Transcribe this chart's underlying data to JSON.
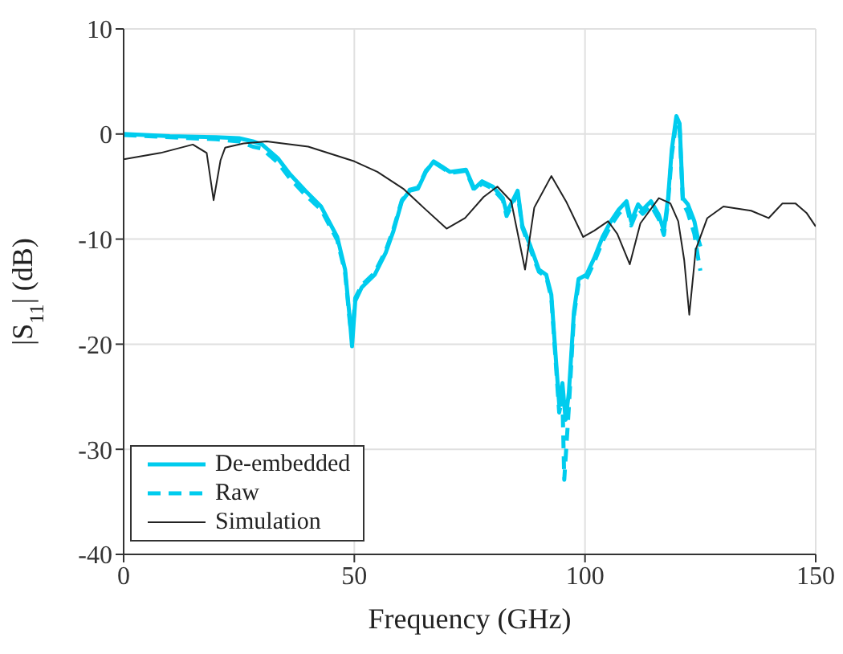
{
  "chart_data": {
    "type": "line",
    "xlabel": "Frequency (GHz)",
    "ylabel": "|S$_{11}$| (dB)",
    "xlim": [
      0,
      150
    ],
    "ylim": [
      -40,
      10
    ],
    "xticks": [
      0,
      50,
      100,
      150
    ],
    "yticks": [
      -40,
      -30,
      -20,
      -10,
      0,
      10
    ],
    "grid": true,
    "legend": "bottom left",
    "series": [
      {
        "name": "De-embedded",
        "color": "#00ccee",
        "line_style": "solid",
        "x": [
          0,
          10,
          20,
          25,
          28,
          30,
          33.4,
          36,
          39.4,
          42.8,
          46.3,
          48,
          49,
          49.5,
          50.2,
          51.6,
          54.4,
          56.8,
          58.5,
          60.3,
          62,
          63.8,
          65.5,
          67.2,
          69,
          70.7,
          74.2,
          76,
          77.7,
          80,
          82.2,
          83,
          85.4,
          86.4,
          88.2,
          90,
          91.6,
          92.7,
          93.7,
          94.4,
          95.1,
          95.8,
          96.5,
          97.6,
          98.6,
          100.3,
          102,
          103.8,
          105.6,
          107.3,
          109,
          110,
          111.5,
          112.5,
          114.3,
          116,
          117.1,
          118,
          118.8,
          119.8,
          120.5,
          121.2,
          122.3,
          123.7,
          124.4,
          125
        ],
        "values": [
          0,
          -0.2,
          -0.3,
          -0.4,
          -0.7,
          -1,
          -2.3,
          -3.8,
          -5.4,
          -6.9,
          -9.8,
          -12.9,
          -17.5,
          -20.2,
          -15.9,
          -14.6,
          -13.4,
          -11.3,
          -9.2,
          -6.4,
          -5.4,
          -5.2,
          -3.6,
          -2.6,
          -3.1,
          -3.6,
          -3.4,
          -5.2,
          -4.5,
          -5,
          -6.1,
          -7.5,
          -5.4,
          -8.7,
          -10.7,
          -12.9,
          -13.4,
          -15.3,
          -21.5,
          -25.7,
          -23.7,
          -27.2,
          -24.6,
          -16.9,
          -13.8,
          -13.4,
          -11.8,
          -9.8,
          -8.3,
          -7.2,
          -6.4,
          -8.3,
          -6.7,
          -7.2,
          -6.4,
          -7.7,
          -9.2,
          -6.1,
          -1.5,
          1.7,
          1,
          -6.1,
          -6.7,
          -8.3,
          -9.8,
          -10.7
        ]
      },
      {
        "name": "Raw",
        "color": "#00ccee",
        "line_style": "dashed",
        "x": [
          0,
          10,
          20,
          25,
          28,
          30,
          33.4,
          36,
          39.4,
          42.8,
          46.3,
          48,
          49,
          49.5,
          50.2,
          51.6,
          54.4,
          56.8,
          58.5,
          60.3,
          62,
          63.8,
          65.5,
          67.2,
          69,
          70.7,
          74.2,
          76,
          77.7,
          80,
          82.2,
          83,
          85.4,
          86.4,
          88.2,
          90,
          91.6,
          92.7,
          93.7,
          94.4,
          95.1,
          95.5,
          96.5,
          97.6,
          98.6,
          100.3,
          102,
          103.8,
          105.6,
          107.3,
          109,
          110,
          111.5,
          112.5,
          114.3,
          116,
          117.1,
          118,
          118.8,
          119.8,
          120.5,
          121.2,
          122.3,
          123.7,
          124.4,
          125
        ],
        "values": [
          -0.1,
          -0.3,
          -0.5,
          -0.7,
          -1.2,
          -1.4,
          -2.7,
          -4.2,
          -5.8,
          -7.2,
          -10.1,
          -13.2,
          -17.8,
          -19.5,
          -15.6,
          -14.4,
          -13.2,
          -11.1,
          -9,
          -6.3,
          -5.3,
          -5.1,
          -3.5,
          -2.7,
          -3.2,
          -3.7,
          -3.5,
          -5.4,
          -4.7,
          -5.2,
          -6.3,
          -7.8,
          -5.6,
          -8.9,
          -11,
          -13.1,
          -13.6,
          -15.6,
          -22,
          -26.5,
          -25,
          -32.9,
          -26,
          -17.3,
          -14.2,
          -13.8,
          -12.2,
          -10.2,
          -8.7,
          -7.6,
          -6.8,
          -8.7,
          -7.1,
          -7.6,
          -6.8,
          -8.1,
          -9.6,
          -6.5,
          -2,
          1.2,
          0.6,
          -6.5,
          -7.5,
          -9.5,
          -11.5,
          -13
        ]
      },
      {
        "name": "Simulation",
        "color": "#222222",
        "line_style": "solid",
        "x": [
          0,
          8,
          15,
          18,
          19.5,
          21,
          22,
          26,
          31,
          40,
          50,
          55,
          60.6,
          65,
          70,
          74,
          78,
          81,
          84,
          87,
          89,
          92.7,
          96,
          99.6,
          102,
          105,
          107,
          109.7,
          112,
          116,
          118.5,
          120.2,
          121.5,
          122.6,
          124,
          126.5,
          130,
          136,
          139.8,
          142.8,
          145.6,
          148,
          150
        ],
        "values": [
          -2.4,
          -1.8,
          -1,
          -1.8,
          -6.3,
          -2.5,
          -1.3,
          -0.9,
          -0.7,
          -1.2,
          -2.6,
          -3.6,
          -5.2,
          -7,
          -9,
          -8,
          -6,
          -5,
          -6.4,
          -12.9,
          -7,
          -4,
          -6.5,
          -9.8,
          -9.2,
          -8.3,
          -9.5,
          -12.4,
          -8.5,
          -6.1,
          -6.6,
          -8.3,
          -12,
          -17.2,
          -11,
          -8,
          -6.9,
          -7.3,
          -8,
          -6.6,
          -6.6,
          -7.5,
          -8.8
        ]
      }
    ]
  }
}
